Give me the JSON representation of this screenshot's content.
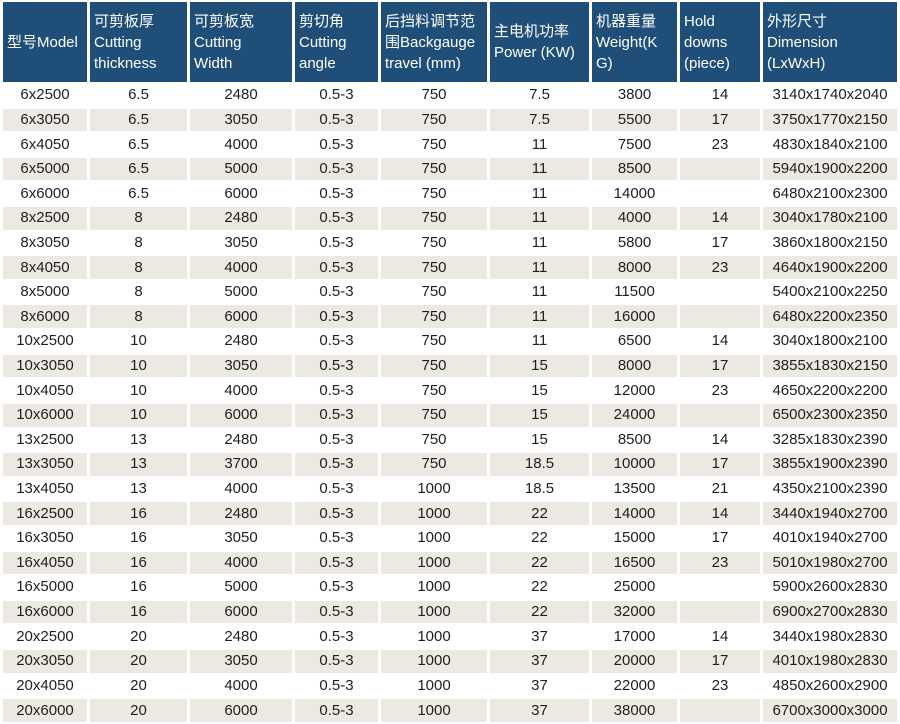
{
  "page": {
    "background_color": "#ffffff",
    "header_bg_color": "#1f4e79",
    "header_text_color": "#ffffff",
    "stripe_row_color": "#ebe9e1",
    "plain_row_color": "#ffffff",
    "body_text_color": "#1f1f1f"
  },
  "table": {
    "columns": [
      {
        "id": "model",
        "label": "型号Model"
      },
      {
        "id": "cutting_thickness",
        "label": "可剪板厚\nCutting\nthickness"
      },
      {
        "id": "cutting_width",
        "label": "可剪板宽\nCutting\nWidth"
      },
      {
        "id": "cutting_angle",
        "label": "剪切角\nCutting\nangle"
      },
      {
        "id": "backgauge_travel",
        "label": "后挡料调节范\n围Backgauge\ntravel (mm)"
      },
      {
        "id": "power",
        "label": "主电机功率\nPower (KW)"
      },
      {
        "id": "weight",
        "label": "机器重量\nWeight(K\nG)"
      },
      {
        "id": "hold_downs",
        "label": "Hold\ndowns\n(piece)"
      },
      {
        "id": "dimension",
        "label": "外形尺寸\nDimension\n(LxWxH)"
      }
    ],
    "rows": [
      [
        "6x2500",
        "6.5",
        "2480",
        "0.5-3",
        "750",
        "7.5",
        "3800",
        "14",
        "3140x1740x2040"
      ],
      [
        "6x3050",
        "6.5",
        "3050",
        "0.5-3",
        "750",
        "7.5",
        "5500",
        "17",
        "3750x1770x2150"
      ],
      [
        "6x4050",
        "6.5",
        "4000",
        "0.5-3",
        "750",
        "11",
        "7500",
        "23",
        "4830x1840x2100"
      ],
      [
        "6x5000",
        "6.5",
        "5000",
        "0.5-3",
        "750",
        "11",
        "8500",
        "",
        "5940x1900x2200"
      ],
      [
        "6x6000",
        "6.5",
        "6000",
        "0.5-3",
        "750",
        "11",
        "14000",
        "",
        "6480x2100x2300"
      ],
      [
        "8x2500",
        "8",
        "2480",
        "0.5-3",
        "750",
        "11",
        "4000",
        "14",
        "3040x1780x2100"
      ],
      [
        "8x3050",
        "8",
        "3050",
        "0.5-3",
        "750",
        "11",
        "5800",
        "17",
        "3860x1800x2150"
      ],
      [
        "8x4050",
        "8",
        "4000",
        "0.5-3",
        "750",
        "11",
        "8000",
        "23",
        "4640x1900x2200"
      ],
      [
        "8x5000",
        "8",
        "5000",
        "0.5-3",
        "750",
        "11",
        "11500",
        "",
        "5400x2100x2250"
      ],
      [
        "8x6000",
        "8",
        "6000",
        "0.5-3",
        "750",
        "11",
        "16000",
        "",
        "6480x2200x2350"
      ],
      [
        "10x2500",
        "10",
        "2480",
        "0.5-3",
        "750",
        "11",
        "6500",
        "14",
        "3040x1800x2100"
      ],
      [
        "10x3050",
        "10",
        "3050",
        "0.5-3",
        "750",
        "15",
        "8000",
        "17",
        "3855x1830x2150"
      ],
      [
        "10x4050",
        "10",
        "4000",
        "0.5-3",
        "750",
        "15",
        "12000",
        "23",
        "4650x2200x2200"
      ],
      [
        "10x6000",
        "10",
        "6000",
        "0.5-3",
        "750",
        "15",
        "24000",
        "",
        "6500x2300x2350"
      ],
      [
        "13x2500",
        "13",
        "2480",
        "0.5-3",
        "750",
        "15",
        "8500",
        "14",
        "3285x1830x2390"
      ],
      [
        "13x3050",
        "13",
        "3700",
        "0.5-3",
        "750",
        "18.5",
        "10000",
        "17",
        "3855x1900x2390"
      ],
      [
        "13x4050",
        "13",
        "4000",
        "0.5-3",
        "1000",
        "18.5",
        "13500",
        "21",
        "4350x2100x2390"
      ],
      [
        "16x2500",
        "16",
        "2480",
        "0.5-3",
        "1000",
        "22",
        "14000",
        "14",
        "3440x1940x2700"
      ],
      [
        "16x3050",
        "16",
        "3050",
        "0.5-3",
        "1000",
        "22",
        "15000",
        "17",
        "4010x1940x2700"
      ],
      [
        "16x4050",
        "16",
        "4000",
        "0.5-3",
        "1000",
        "22",
        "16500",
        "23",
        "5010x1980x2700"
      ],
      [
        "16x5000",
        "16",
        "5000",
        "0.5-3",
        "1000",
        "22",
        "25000",
        "",
        "5900x2600x2830"
      ],
      [
        "16x6000",
        "16",
        "6000",
        "0.5-3",
        "1000",
        "22",
        "32000",
        "",
        "6900x2700x2830"
      ],
      [
        "20x2500",
        "20",
        "2480",
        "0.5-3",
        "1000",
        "37",
        "17000",
        "14",
        "3440x1980x2830"
      ],
      [
        "20x3050",
        "20",
        "3050",
        "0.5-3",
        "1000",
        "37",
        "20000",
        "17",
        "4010x1980x2830"
      ],
      [
        "20x4050",
        "20",
        "4000",
        "0.5-3",
        "1000",
        "37",
        "22000",
        "23",
        "4850x2600x2900"
      ],
      [
        "20x6000",
        "20",
        "6000",
        "0.5-3",
        "1000",
        "37",
        "38000",
        "",
        "6700x3000x3000"
      ]
    ]
  }
}
